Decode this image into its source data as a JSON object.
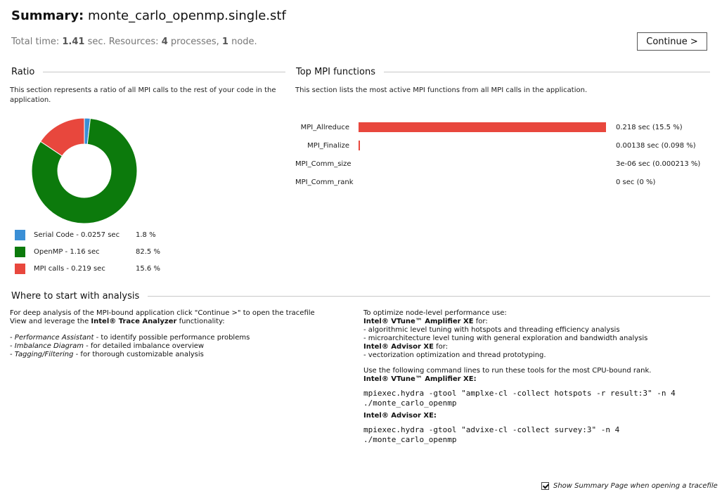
{
  "header": {
    "title_label": "Summary:",
    "title_file": "monte_carlo_openmp.single.stf",
    "stats": {
      "total_time_label": "Total time:",
      "total_time_value": "1.41",
      "resources_prefix": "sec. Resources:",
      "processes_value": "4",
      "processes_label": "processes,",
      "nodes_value": "1",
      "nodes_label": "node."
    },
    "continue_label": "Continue >"
  },
  "ratio": {
    "heading": "Ratio",
    "description": "This section represents a ratio of all MPI calls to the rest of your code in the application.",
    "colors": {
      "serial": "#3a8fd6",
      "openmp": "#0c7a0c",
      "mpi": "#e8473d"
    },
    "legend": [
      {
        "label": "Serial Code - 0.0257 sec",
        "percent": "1.8 %",
        "color": "#3a8fd6",
        "value": 1.8
      },
      {
        "label": "OpenMP - 1.16 sec",
        "percent": "82.5 %",
        "color": "#0c7a0c",
        "value": 82.5
      },
      {
        "label": "MPI calls - 0.219 sec",
        "percent": "15.6 %",
        "color": "#e8473d",
        "value": 15.6
      }
    ]
  },
  "top_mpi": {
    "heading": "Top MPI functions",
    "description": "This section lists the most active MPI functions from all MPI calls in the application.",
    "bar_color": "#e8473d",
    "functions": [
      {
        "name": "MPI_Allreduce",
        "value_text": "0.218 sec (15.5 %)",
        "seconds": 0.218
      },
      {
        "name": "MPI_Finalize",
        "value_text": "0.00138 sec (0.098 %)",
        "seconds": 0.00138
      },
      {
        "name": "MPI_Comm_size",
        "value_text": "3e-06 sec (0.000213 %)",
        "seconds": 3e-06
      },
      {
        "name": "MPI_Comm_rank",
        "value_text": "0 sec (0 %)",
        "seconds": 0
      }
    ]
  },
  "analysis": {
    "heading": "Where to start with analysis",
    "left": {
      "intro_line1": "For deep analysis of the MPI-bound application click \"Continue >\" to open the tracefile",
      "intro_line2_pre": "View and leverage the ",
      "intro_line2_bold": "Intel® Trace Analyzer",
      "intro_line2_post": " functionality:",
      "items": [
        {
          "em": "Performance Assistant",
          "rest": " - to identify possible performance problems"
        },
        {
          "em": "Imbalance Diagram",
          "rest": " - for detailed imbalance overview"
        },
        {
          "em": "Tagging/Filtering",
          "rest": " - for thorough customizable analysis"
        }
      ]
    },
    "right": {
      "intro": "To optimize node-level performance use:",
      "vtune_name": "Intel® VTune™ Amplifier XE",
      "for_suffix": " for:",
      "vtune_items": [
        "- algorithmic level tuning with hotspots and threading efficiency analysis",
        "- microarchitecture level tuning with general exploration and bandwidth analysis"
      ],
      "advisor_name": "Intel® Advisor XE",
      "advisor_items": [
        "- vectorization optimization and thread prototyping."
      ],
      "cmd_intro": "Use the following command lines to run these tools for the most CPU-bound rank.",
      "vtune_cmd_label": "Intel® VTune™ Amplifier XE:",
      "vtune_cmd_line1": "mpiexec.hydra -gtool \"amplxe-cl -collect hotspots -r result:3\" -n 4",
      "vtune_cmd_line2": "./monte_carlo_openmp",
      "advisor_cmd_label": "Intel® Advisor XE:",
      "advisor_cmd_line1": "mpiexec.hydra -gtool \"advixe-cl -collect survey:3\" -n 4",
      "advisor_cmd_line2": "./monte_carlo_openmp"
    }
  },
  "footer": {
    "checkbox_label": "Show Summary Page when opening a tracefile",
    "checked": true
  }
}
